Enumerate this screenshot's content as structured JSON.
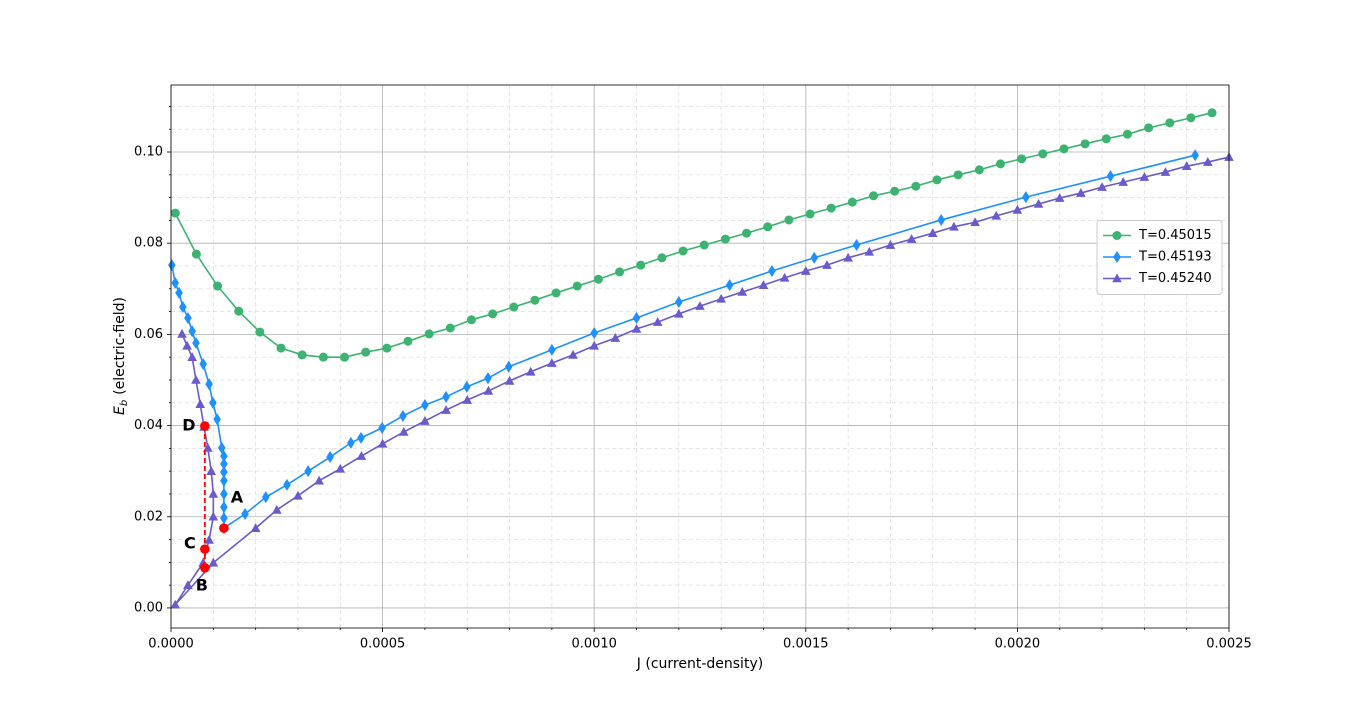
{
  "chart_data": {
    "type": "line",
    "xlabel": "J (current-density)",
    "ylabel": {
      "symbol": "E",
      "subscript": "b",
      "text": "(electric-field)"
    },
    "xlim": [
      0,
      0.0025
    ],
    "ylim": [
      -0.0044,
      0.1147
    ],
    "xticks": [
      {
        "value": 0,
        "label": "0.0000"
      },
      {
        "value": 0.0005,
        "label": "0.0005"
      },
      {
        "value": 0.001,
        "label": "0.0010"
      },
      {
        "value": 0.0015,
        "label": "0.0015"
      },
      {
        "value": 0.002,
        "label": "0.0020"
      },
      {
        "value": 0.0025,
        "label": "0.0025"
      }
    ],
    "yticks": [
      {
        "value": 0,
        "label": "0.00"
      },
      {
        "value": 0.02,
        "label": "0.02"
      },
      {
        "value": 0.04,
        "label": "0.04"
      },
      {
        "value": 0.06,
        "label": "0.06"
      },
      {
        "value": 0.08,
        "label": "0.08"
      },
      {
        "value": 0.1,
        "label": "0.10"
      }
    ],
    "xminorticks": [
      0.0001,
      0.0002,
      0.0003,
      0.0004,
      0.0006,
      0.0007,
      0.0008,
      0.0009,
      0.0011,
      0.0012,
      0.0013,
      0.0014,
      0.0016,
      0.0017,
      0.0018,
      0.0019,
      0.0021,
      0.0022,
      0.0023,
      0.0024
    ],
    "yminorticks": [
      0.005,
      0.01,
      0.015,
      0.025,
      0.03,
      0.035,
      0.045,
      0.05,
      0.055,
      0.065,
      0.07,
      0.075,
      0.085,
      0.09,
      0.095,
      0.105,
      0.11
    ],
    "grid": true,
    "legend": "center right",
    "series": [
      {
        "name": "T=0.45015",
        "color": "#3cb371",
        "marker": "circle",
        "x": [
          1e-05,
          6e-05,
          0.00011,
          0.00016,
          0.00021,
          0.00026,
          0.00031,
          0.00036,
          0.00041,
          0.00046,
          0.00051,
          0.00056,
          0.00061,
          0.00066,
          0.00071,
          0.00076,
          0.00081,
          0.00086,
          0.00091,
          0.00096,
          0.00101,
          0.00106,
          0.00111,
          0.00116,
          0.00121,
          0.00126,
          0.00131,
          0.00136,
          0.00141,
          0.00146,
          0.00151,
          0.00156,
          0.00161,
          0.00166,
          0.00171,
          0.00176,
          0.00181,
          0.00186,
          0.00191,
          0.00196,
          0.00201,
          0.00206,
          0.00211,
          0.00216,
          0.00221,
          0.00226,
          0.00231,
          0.00236,
          0.00241,
          0.00246
        ],
        "values": [
          0.0866,
          0.0776,
          0.0706,
          0.0651,
          0.0605,
          0.057,
          0.0555,
          0.055,
          0.055,
          0.0561,
          0.057,
          0.0585,
          0.0601,
          0.0614,
          0.0632,
          0.0645,
          0.066,
          0.0675,
          0.0691,
          0.0706,
          0.0721,
          0.0737,
          0.0752,
          0.0768,
          0.0783,
          0.0796,
          0.0809,
          0.0822,
          0.0836,
          0.0851,
          0.0864,
          0.0877,
          0.089,
          0.0904,
          0.0914,
          0.0925,
          0.0939,
          0.095,
          0.0961,
          0.0974,
          0.0985,
          0.0996,
          0.1007,
          0.1018,
          0.1029,
          0.1039,
          0.1053,
          0.1064,
          0.1075,
          0.1086
        ]
      },
      {
        "name": "T=0.45193",
        "color": "#1e90ff",
        "marker": "diamond",
        "x": [
          2e-06,
          1e-05,
          1.9e-05,
          2.8e-05,
          4e-05,
          5e-05,
          5.9e-05,
          7.6e-05,
          9e-05,
          9.9e-05,
          0.000109,
          0.00012,
          0.000125,
          0.000125,
          0.000125,
          0.000125,
          0.000125,
          0.000125,
          0.000125,
          0.000125,
          0.000175,
          0.000224,
          0.000274,
          0.000324,
          0.000376,
          0.000425,
          0.000449,
          0.000499,
          0.000548,
          0.0006,
          0.00065,
          0.000699,
          0.000749,
          0.000798,
          0.0009,
          0.001,
          0.0011,
          0.0012,
          0.00132,
          0.00142,
          0.00152,
          0.00162,
          0.00182,
          0.00202,
          0.00222,
          0.00242
        ],
        "values": [
          0.0752,
          0.0713,
          0.0691,
          0.066,
          0.0636,
          0.0607,
          0.0581,
          0.0535,
          0.0491,
          0.045,
          0.0414,
          0.0351,
          0.0333,
          0.0316,
          0.0298,
          0.0279,
          0.025,
          0.0221,
          0.0197,
          0.0175,
          0.0206,
          0.0243,
          0.027,
          0.03,
          0.0331,
          0.0362,
          0.0373,
          0.0395,
          0.0421,
          0.0445,
          0.0463,
          0.0485,
          0.0504,
          0.0529,
          0.0566,
          0.0603,
          0.0636,
          0.0671,
          0.0708,
          0.0739,
          0.0768,
          0.0796,
          0.0851,
          0.0901,
          0.0947,
          0.0993
        ]
      },
      {
        "name": "T=0.45240",
        "color": "#6a5acd",
        "marker": "triangle",
        "x": [
          2.6e-05,
          3.8e-05,
          5e-05,
          5.9e-05,
          6.9e-05,
          7.8e-05,
          8.7e-05,
          9.5e-05,
          0.0001,
          0.0001,
          9e-05,
          7.6e-05,
          4e-05,
          1e-05,
          0.0001,
          0.0002,
          0.00025,
          0.0003,
          0.00035,
          0.0004,
          0.00045,
          0.0005,
          0.00055,
          0.0006,
          0.00065,
          0.0007,
          0.00075,
          0.0008,
          0.00085,
          0.0009,
          0.00095,
          0.001,
          0.00105,
          0.0011,
          0.00115,
          0.0012,
          0.00125,
          0.0013,
          0.00135,
          0.0014,
          0.00145,
          0.0015,
          0.00155,
          0.0016,
          0.00165,
          0.0017,
          0.00175,
          0.0018,
          0.00185,
          0.0019,
          0.00195,
          0.002,
          0.00205,
          0.0021,
          0.00215,
          0.0022,
          0.00225,
          0.0023,
          0.00235,
          0.0024,
          0.00245,
          0.0025
        ],
        "values": [
          0.0601,
          0.0575,
          0.055,
          0.05,
          0.0447,
          0.0397,
          0.0351,
          0.03,
          0.025,
          0.02,
          0.0149,
          0.0099,
          0.005,
          0.0007,
          0.0099,
          0.0175,
          0.0215,
          0.0246,
          0.0279,
          0.0305,
          0.0333,
          0.036,
          0.0386,
          0.041,
          0.0434,
          0.0456,
          0.0476,
          0.0498,
          0.0518,
          0.0537,
          0.0555,
          0.0575,
          0.0592,
          0.0612,
          0.0627,
          0.0645,
          0.0662,
          0.0678,
          0.0693,
          0.0708,
          0.0724,
          0.0739,
          0.0752,
          0.0768,
          0.0781,
          0.0796,
          0.0809,
          0.0822,
          0.0836,
          0.0846,
          0.086,
          0.0873,
          0.0886,
          0.0899,
          0.091,
          0.0923,
          0.0934,
          0.0945,
          0.0956,
          0.0969,
          0.0978,
          0.0989
        ]
      }
    ],
    "annotations": [
      {
        "label": "A",
        "x": 0.000125,
        "y": 0.0175,
        "color": "#ff0000"
      },
      {
        "label": "B",
        "x": 8e-05,
        "y": 0.0088,
        "color": "#ff0000"
      },
      {
        "label": "C",
        "x": 8e-05,
        "y": 0.0129,
        "color": "#ff0000"
      },
      {
        "label": "D",
        "x": 8e-05,
        "y": 0.0399,
        "color": "#ff0000"
      }
    ]
  }
}
